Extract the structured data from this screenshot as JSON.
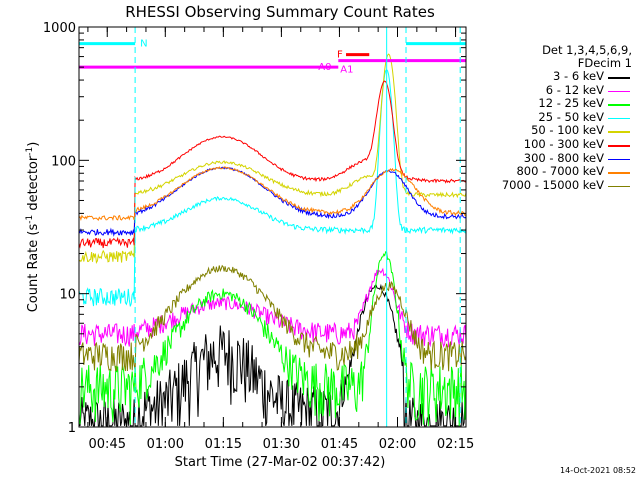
{
  "chart_data": {
    "type": "line",
    "title": "RHESSI Observing Summary Count Rates",
    "xlabel": "Start Time (27-Mar-02 00:37:42)",
    "ylabel_main": "Count Rate (s",
    "ylabel_sup1": "-1",
    "ylabel_mid": " detector",
    "ylabel_sup2": "-1",
    "ylabel_end": ")",
    "yscale": "log",
    "ylim": [
      1,
      1000
    ],
    "y_ticks": [
      {
        "value": 1,
        "label": "1"
      },
      {
        "value": 10,
        "label": "10"
      },
      {
        "value": 100,
        "label": "100"
      },
      {
        "value": 1000,
        "label": "1000"
      }
    ],
    "x_unit": "minutes since 00:37:42",
    "xlim": [
      0,
      100
    ],
    "x_ticks": [
      {
        "value": 7.3,
        "label": "00:45"
      },
      {
        "value": 22.3,
        "label": "01:00"
      },
      {
        "value": 37.3,
        "label": "01:15"
      },
      {
        "value": 52.3,
        "label": "01:30"
      },
      {
        "value": 67.3,
        "label": "01:45"
      },
      {
        "value": 82.3,
        "label": "02:00"
      },
      {
        "value": 97.3,
        "label": "02:15"
      }
    ],
    "legend": {
      "header_line1": "Det 1,3,4,5,6,9,",
      "header_line2": "FDecim 1",
      "placement": "right"
    },
    "series": [
      {
        "name": "3 - 6 keV",
        "color": "#000000"
      },
      {
        "name": "6 - 12 keV",
        "color": "#ff00ff"
      },
      {
        "name": "12 - 25 keV",
        "color": "#00ff00"
      },
      {
        "name": "25 - 50 keV",
        "color": "#00ffff"
      },
      {
        "name": "50 - 100 keV",
        "color": "#d4d400"
      },
      {
        "name": "100 - 300 keV",
        "color": "#ff0000"
      },
      {
        "name": "300 - 800 keV",
        "color": "#0000ff"
      },
      {
        "name": "800 - 7000 keV",
        "color": "#ff8000"
      },
      {
        "name": "7000 - 15000 keV",
        "color": "#808000"
      }
    ],
    "annotations": {
      "N_label": "N",
      "F_label": "F",
      "A0_label": "A0",
      "A1_label": "A1",
      "night_bars": [
        {
          "x0": 0,
          "x1": 14.5,
          "value": 750
        },
        {
          "x0": 84.5,
          "x1": 100,
          "value": 750
        }
      ],
      "attenuator_A0": {
        "x0": 0,
        "x1": 67,
        "value": 500
      },
      "attenuator_A1": {
        "x0": 67,
        "x1": 100,
        "value": 560
      },
      "flare_bar": {
        "x0": 69,
        "x1": 75,
        "value": 620
      },
      "vlines_dashed": [
        14.5,
        84.5,
        98.5
      ],
      "vline_solid": 79.5
    }
  },
  "footer": {
    "date_stamp": "14-Oct-2021 08:52"
  }
}
